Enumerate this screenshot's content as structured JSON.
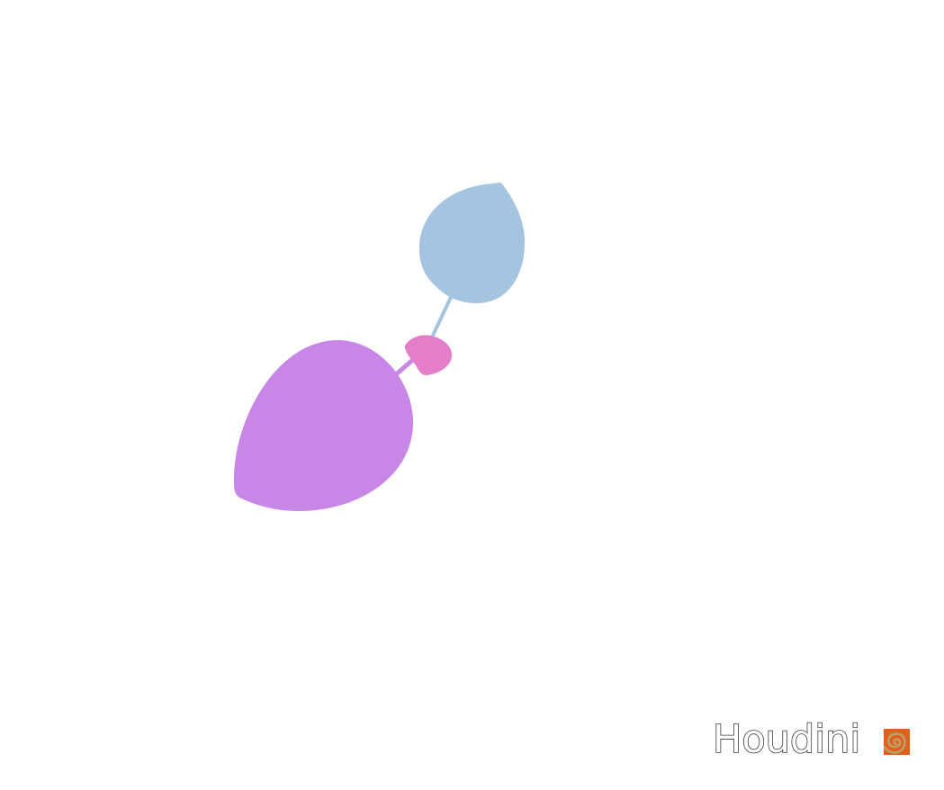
{
  "viewport": {
    "background": "#ffffff"
  },
  "scene": {
    "shapes": [
      {
        "name": "large-leaf",
        "color": "#c886e6"
      },
      {
        "name": "upper-leaf",
        "color": "#a5c4e0"
      },
      {
        "name": "small-leaf",
        "color": "#e47ec8"
      }
    ],
    "stems": [
      {
        "name": "upper-stem",
        "color": "#a5c4e0"
      },
      {
        "name": "lower-stem",
        "color": "#c886e6"
      }
    ]
  },
  "watermark": {
    "text": "Houdini",
    "logo_icon": "houdini-spiral-icon",
    "logo_color": "#e0601c",
    "spiral_color": "#b9a36a"
  }
}
